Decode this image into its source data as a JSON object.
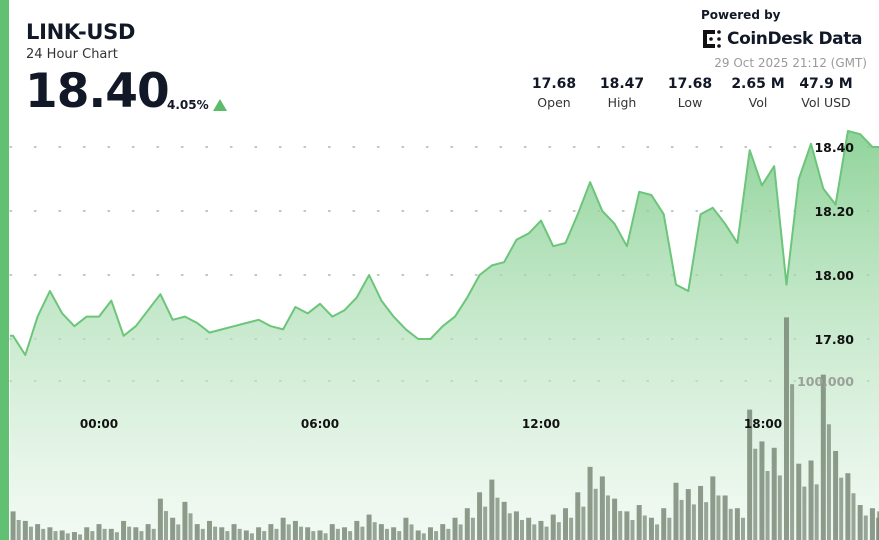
{
  "header": {
    "title": "LINK-USD",
    "subtitle": "24 Hour Chart",
    "price": "18.40",
    "change": "4.05%",
    "change_direction": "up"
  },
  "branding": {
    "powered_by": "Powered by",
    "name": "CoinDesk Data",
    "logo_icon": "coindesk-logo-icon"
  },
  "timestamp": "29 Oct 2025 21:12 (GMT)",
  "stats": [
    {
      "value": "17.68",
      "label": "Open"
    },
    {
      "value": "18.47",
      "label": "High"
    },
    {
      "value": "17.68",
      "label": "Low"
    },
    {
      "value": "2.65 M",
      "label": "Vol"
    },
    {
      "value": "47.9 M",
      "label": "Vol USD"
    }
  ],
  "colors": {
    "accent": "#62c072",
    "line": "#6cc57a",
    "volume": "#7a8a78",
    "up": "#5dbb6c"
  },
  "chart_data": {
    "type": "area",
    "grid": true,
    "x_tick_labels": [
      "00:00",
      "06:00",
      "12:00",
      "18:00"
    ],
    "y_tick_labels": [
      "18.40",
      "18.20",
      "18.00",
      "17.80"
    ],
    "ylim": [
      17.59,
      18.54
    ],
    "volume_tick_label": "100,000",
    "volume_ylim": [
      0,
      150000
    ],
    "x": [
      "21:40",
      "22:00",
      "22:20",
      "22:40",
      "23:00",
      "23:20",
      "23:40",
      "00:00",
      "00:20",
      "00:40",
      "01:00",
      "01:20",
      "01:40",
      "02:00",
      "02:20",
      "02:40",
      "03:00",
      "03:20",
      "03:40",
      "04:00",
      "04:20",
      "04:40",
      "05:00",
      "05:20",
      "05:40",
      "06:00",
      "06:20",
      "06:40",
      "07:00",
      "07:20",
      "07:40",
      "08:00",
      "08:20",
      "08:40",
      "09:00",
      "09:20",
      "09:40",
      "10:00",
      "10:20",
      "10:40",
      "11:00",
      "11:20",
      "11:40",
      "12:00",
      "12:20",
      "12:40",
      "13:00",
      "13:20",
      "13:40",
      "14:00",
      "14:20",
      "14:40",
      "15:00",
      "15:20",
      "15:40",
      "16:00",
      "16:20",
      "16:40",
      "17:00",
      "17:20",
      "17:40",
      "18:00",
      "18:20",
      "18:40",
      "19:00",
      "19:20",
      "19:40",
      "20:00",
      "20:20",
      "20:40",
      "21:00",
      "21:12"
    ],
    "price": [
      17.81,
      17.75,
      17.87,
      17.95,
      17.88,
      17.84,
      17.87,
      17.87,
      17.92,
      17.81,
      17.84,
      17.89,
      17.94,
      17.86,
      17.87,
      17.85,
      17.82,
      17.83,
      17.84,
      17.85,
      17.86,
      17.84,
      17.83,
      17.9,
      17.88,
      17.91,
      17.87,
      17.89,
      17.93,
      18.0,
      17.92,
      17.87,
      17.83,
      17.8,
      17.8,
      17.84,
      17.87,
      17.93,
      18.0,
      18.03,
      18.04,
      18.11,
      18.13,
      18.17,
      18.09,
      18.1,
      18.19,
      18.29,
      18.2,
      18.16,
      18.09,
      18.26,
      18.25,
      18.19,
      17.97,
      17.95,
      18.19,
      18.21,
      18.16,
      18.1,
      18.39,
      18.28,
      18.34,
      17.97,
      18.3,
      18.41,
      18.27,
      18.22,
      18.45,
      18.44,
      18.4,
      18.4
    ],
    "volume": [
      18000,
      12000,
      10000,
      8000,
      6000,
      5000,
      8000,
      10000,
      7000,
      12000,
      8000,
      10000,
      26000,
      14000,
      24000,
      10000,
      12000,
      8000,
      10000,
      6000,
      8000,
      10000,
      14000,
      12000,
      8000,
      6000,
      10000,
      8000,
      12000,
      16000,
      10000,
      8000,
      14000,
      6000,
      8000,
      10000,
      14000,
      20000,
      30000,
      38000,
      24000,
      18000,
      14000,
      12000,
      16000,
      20000,
      30000,
      46000,
      40000,
      26000,
      18000,
      22000,
      14000,
      20000,
      36000,
      32000,
      34000,
      40000,
      28000,
      20000,
      82000,
      62000,
      58000,
      140000,
      48000,
      50000,
      104000,
      56000,
      42000,
      22000,
      20000,
      18000
    ]
  }
}
